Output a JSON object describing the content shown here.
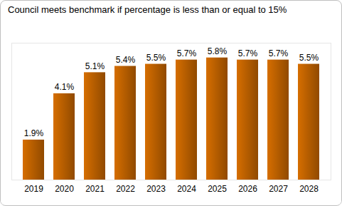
{
  "chart_data": {
    "type": "bar",
    "title": "Council meets benchmark if percentage is less than or equal to 15%",
    "categories": [
      "2019",
      "2020",
      "2021",
      "2022",
      "2023",
      "2024",
      "2025",
      "2026",
      "2027",
      "2028"
    ],
    "values": [
      1.9,
      4.1,
      5.1,
      5.4,
      5.5,
      5.7,
      5.8,
      5.7,
      5.7,
      5.5
    ],
    "value_labels": [
      "1.9%",
      "4.1%",
      "5.1%",
      "5.4%",
      "5.5%",
      "5.7%",
      "5.8%",
      "5.7%",
      "5.7%",
      "5.5%"
    ],
    "color": "#b35c00",
    "ylim": [
      0,
      6.5
    ],
    "grid": false,
    "data_labels": true,
    "tick_labels": "x"
  }
}
